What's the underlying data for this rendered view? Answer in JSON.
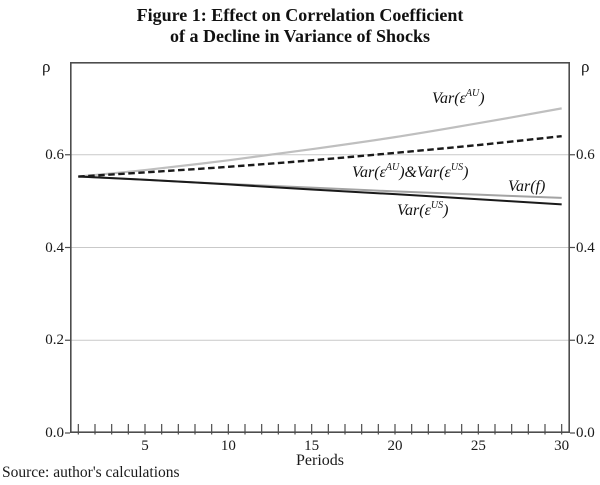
{
  "title_line1": "Figure 1: Effect on Correlation Coefficient",
  "title_line2": "of a Decline in Variance of Shocks",
  "source": "Source: author's calculations",
  "axes": {
    "y_symbol_left": "ρ",
    "y_symbol_right": "ρ",
    "x_label": "Periods",
    "y_tick_values": [
      0,
      0.2,
      0.4,
      0.6
    ],
    "y_tick_labels": [
      "0.0",
      "0.2",
      "0.4",
      "0.6"
    ],
    "x_tick_label_values": [
      5,
      10,
      15,
      20,
      25,
      30
    ],
    "minor_x_tick_periods_from": 1,
    "minor_x_tick_periods_to": 30
  },
  "colors": {
    "axis": "#4d4d4d",
    "grid": "#c9c9c9",
    "black_line": "#1a1a1a",
    "light_gray_line": "#bfbfbf",
    "gray_line": "#a3a3a3",
    "text": "#1a1a1a"
  },
  "curve_labels": {
    "au": {
      "parts": [
        {
          "t": "Var("
        },
        {
          "t": "ε"
        },
        {
          "s": "AU"
        },
        {
          "t": ")"
        }
      ]
    },
    "both": {
      "parts": [
        {
          "t": "Var("
        },
        {
          "t": "ε"
        },
        {
          "s": "AU"
        },
        {
          "t": ")&Var("
        },
        {
          "t": "ε"
        },
        {
          "s": "US"
        },
        {
          "t": ")"
        }
      ]
    },
    "f": {
      "parts": [
        {
          "t": "Var(f)"
        }
      ]
    },
    "us": {
      "parts": [
        {
          "t": "Var("
        },
        {
          "t": "ε"
        },
        {
          "s": "US"
        },
        {
          "t": ")"
        }
      ]
    }
  },
  "chart_data": {
    "type": "line",
    "title": "Figure 1: Effect on Correlation Coefficient of a Decline in Variance of Shocks",
    "xlabel": "Periods",
    "ylabel": "ρ (correlation coefficient)",
    "xlim": [
      0.5,
      30.5
    ],
    "ylim": [
      0,
      0.8
    ],
    "grid": "horizontal gridlines at 0.2, 0.4 and 0.6; boxed plot area; minor x ticks every period 1-30",
    "legend_position": "inline labels next to each curve",
    "x": [
      1,
      5,
      10,
      15,
      20,
      25,
      30
    ],
    "series": [
      {
        "name": "Var(ε^AU)",
        "style": "solid",
        "color": "#bfbfbf",
        "width": 2.2,
        "values": [
          0.553,
          0.567,
          0.588,
          0.612,
          0.638,
          0.668,
          0.7
        ]
      },
      {
        "name": "Var(f)",
        "style": "solid",
        "color": "#a3a3a3",
        "width": 2.0,
        "values": [
          0.553,
          0.546,
          0.537,
          0.529,
          0.521,
          0.514,
          0.507
        ]
      },
      {
        "name": "Var(ε^US)",
        "style": "solid",
        "color": "#1a1a1a",
        "width": 2.0,
        "values": [
          0.553,
          0.546,
          0.536,
          0.525,
          0.515,
          0.504,
          0.493
        ]
      },
      {
        "name": "Var(ε^AU)&Var(ε^US)",
        "style": "dashed",
        "color": "#1a1a1a",
        "width": 2.4,
        "values": [
          0.553,
          0.562,
          0.574,
          0.588,
          0.604,
          0.621,
          0.64
        ]
      }
    ]
  }
}
